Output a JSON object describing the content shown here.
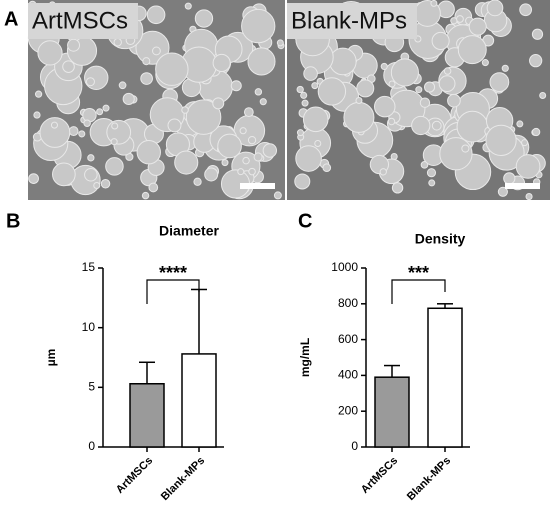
{
  "panel_labels": [
    "A",
    "B",
    "C"
  ],
  "images": [
    {
      "label": "ArtMSCs"
    },
    {
      "label": "Blank-MPs"
    }
  ],
  "chart_data": [
    {
      "type": "bar",
      "title": "Diameter",
      "y_label": "µm",
      "categories": [
        "ArtMSCs",
        "Blank-MPs"
      ],
      "values": [
        5.3,
        7.8
      ],
      "errors": [
        1.8,
        5.4
      ],
      "colors": [
        "#9a9a9a",
        "#ffffff"
      ],
      "ylim": [
        0,
        15
      ],
      "yticks": [
        0,
        5,
        10,
        15
      ],
      "significance": "****"
    },
    {
      "type": "bar",
      "title": "Density",
      "y_label": "mg/mL",
      "categories": [
        "ArtMSCs",
        "Blank-MPs"
      ],
      "values": [
        390,
        775
      ],
      "errors": [
        65,
        25
      ],
      "colors": [
        "#9a9a9a",
        "#ffffff"
      ],
      "ylim": [
        0,
        1000
      ],
      "yticks": [
        0,
        200,
        400,
        600,
        800,
        1000
      ],
      "significance": "***"
    }
  ]
}
